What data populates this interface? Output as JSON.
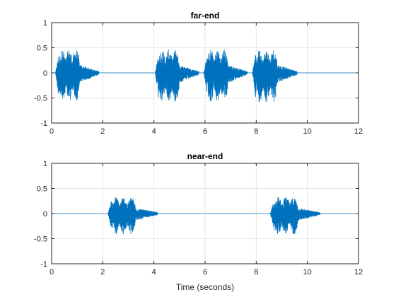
{
  "chart_data": [
    {
      "type": "line",
      "title": "far-end",
      "xlabel": "",
      "ylabel": "",
      "xlim": [
        0,
        12
      ],
      "ylim": [
        -1,
        1
      ],
      "xticks": [
        "0",
        "2",
        "4",
        "6",
        "8",
        "10",
        "12"
      ],
      "yticks": [
        "1",
        "0.5",
        "0",
        "-0.5",
        "-1"
      ],
      "grid": true,
      "line_color": "#0072BD",
      "series": [
        {
          "bursts": [
            {
              "start": 0.15,
              "end": 1.85,
              "peak": 0.47
            },
            {
              "start": 4.05,
              "end": 5.75,
              "peak": 0.47
            },
            {
              "start": 5.95,
              "end": 7.65,
              "peak": 0.47
            },
            {
              "start": 7.85,
              "end": 9.6,
              "peak": 0.47
            }
          ]
        }
      ]
    },
    {
      "type": "line",
      "title": "near-end",
      "xlabel": "Time (seconds)",
      "ylabel": "",
      "xlim": [
        0,
        12
      ],
      "ylim": [
        -1,
        1
      ],
      "xticks": [
        "0",
        "2",
        "4",
        "6",
        "8",
        "10",
        "12"
      ],
      "yticks": [
        "1",
        "0.5",
        "0",
        "-0.5",
        "-1"
      ],
      "grid": true,
      "line_color": "#0072BD",
      "series": [
        {
          "bursts": [
            {
              "start": 2.2,
              "end": 4.15,
              "peak": 0.33
            },
            {
              "start": 8.55,
              "end": 10.5,
              "peak": 0.33
            }
          ]
        }
      ]
    }
  ]
}
